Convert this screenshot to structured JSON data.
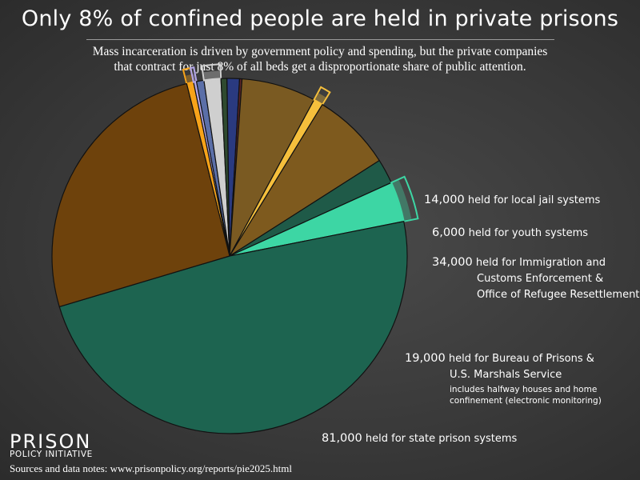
{
  "title": "Only 8% of confined people are held in private prisons",
  "subtitle_line1": "Mass incarceration is driven by government policy and spending, but the private companies",
  "subtitle_line2": "that contract for just 8% of all beds get a disproportionate share of public attention.",
  "labels": {
    "local_jail": {
      "value": "14,000",
      "text": "held for local jail systems"
    },
    "youth": {
      "value": "6,000",
      "text": "held for youth systems"
    },
    "ice": {
      "value": "34,000",
      "text_line1": "held for Immigration and",
      "text_line2": "Customs Enforcement &",
      "text_line3": "Office of Refugee Resettlement"
    },
    "bop": {
      "value": "19,000",
      "text_line1": "held for Bureau of Prisons &",
      "text_line2": "U.S. Marshals Service",
      "note_line1": "includes halfway houses and home",
      "note_line2": "confinement (electronic monitoring)"
    },
    "state": {
      "value": "81,000",
      "text": "held for state prison systems"
    }
  },
  "logo_line1": "PRISON",
  "logo_line2": "POLICY INITIATIVE",
  "source": "Sources and data notes: www.prisonpolicy.org/reports/pie2025.html",
  "chart_data": {
    "type": "pie",
    "unit": "people",
    "slices": [
      {
        "name": "local jail systems (private)",
        "value": 14000,
        "color": "#f7a31a",
        "exploded": true
      },
      {
        "name": "youth systems (private)",
        "value": 6000,
        "color": "#b4a7e8",
        "exploded": true
      },
      {
        "name": "youth systems",
        "value": 15000,
        "color": "#5b6fa8",
        "exploded": false
      },
      {
        "name": "Immigration and Customs Enforcement & Office of Refugee Resettlement",
        "value": 34000,
        "color": "#cfcfcf",
        "exploded": true
      },
      {
        "name": "",
        "value": 12000,
        "color": "#2f4a2f",
        "exploded": false
      },
      {
        "name": "",
        "value": 25000,
        "color": "#2a3a80",
        "exploded": false
      },
      {
        "name": "",
        "value": 5000,
        "color": "#5a2525",
        "exploded": false
      },
      {
        "name": "",
        "value": 150000,
        "color": "#7a5a22",
        "exploded": false
      },
      {
        "name": "Bureau of Prisons & U.S. Marshals Service (private)",
        "value": 19000,
        "color": "#f5bf3c",
        "exploded": true
      },
      {
        "name": "",
        "value": 160000,
        "color": "#7e5a1e",
        "exploded": false
      },
      {
        "name": "",
        "value": 50000,
        "color": "#1f5a48",
        "exploded": false
      },
      {
        "name": "state prison systems (private)",
        "value": 81000,
        "color": "#3dd6a4",
        "exploded": true
      },
      {
        "name": "",
        "value": 1075000,
        "color": "#1d6450",
        "exploded": false
      },
      {
        "name": "",
        "value": 570000,
        "color": "#6e420c",
        "exploded": false
      }
    ]
  }
}
